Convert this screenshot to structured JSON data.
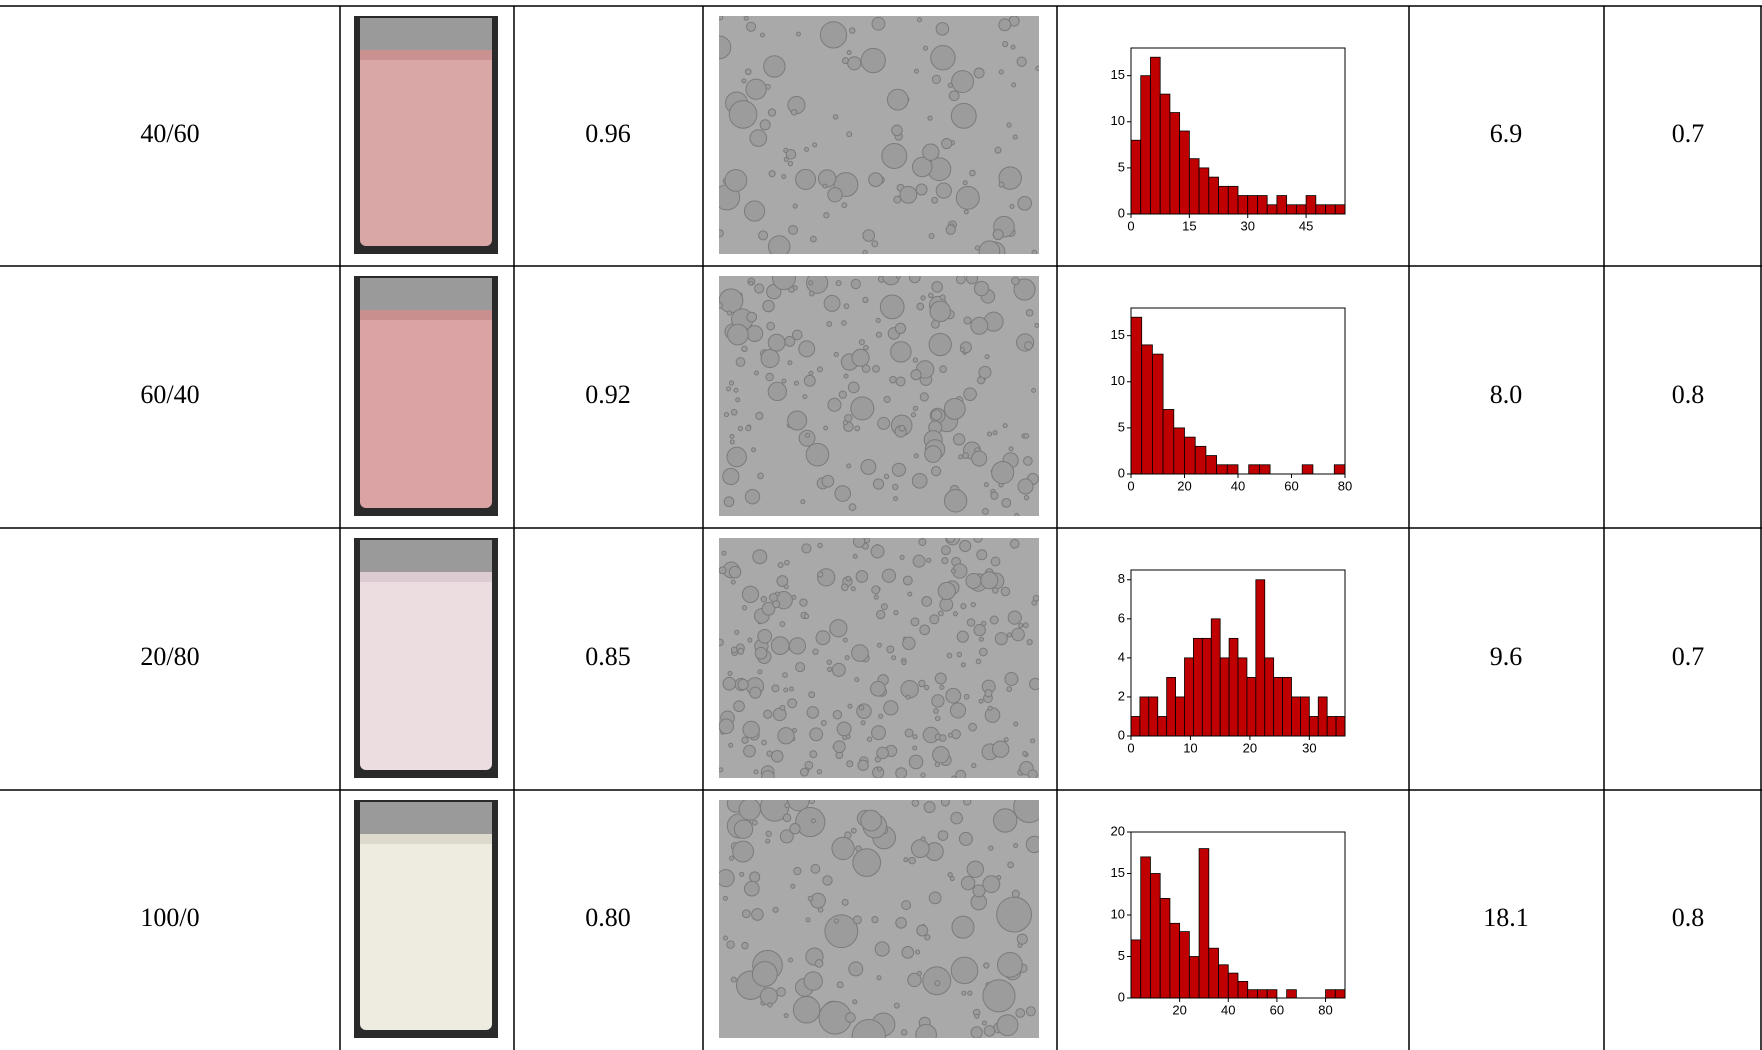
{
  "table": {
    "rows": [
      {
        "ratio": "40/60",
        "value_a": "0.96",
        "size": "6.9",
        "value_b": "0.7",
        "histogram": {
          "type": "histogram",
          "bins": [
            0,
            2.5,
            5,
            7.5,
            10,
            12.5,
            15,
            17.5,
            20,
            22.5,
            25,
            27.5,
            30,
            32.5,
            35,
            37.5,
            40,
            42.5,
            45,
            47.5,
            50,
            52.5,
            55
          ],
          "counts": [
            8,
            15,
            17,
            13,
            11,
            9,
            6,
            5,
            4,
            3,
            3,
            2,
            2,
            2,
            1,
            2,
            1,
            1,
            2,
            1,
            1,
            1
          ],
          "color": "#c00000",
          "xlim": [
            0,
            55
          ],
          "ylim": [
            0,
            18
          ],
          "xticks": [
            0,
            15,
            30,
            45
          ],
          "yticks": [
            0,
            5,
            10,
            15
          ]
        }
      },
      {
        "ratio": "60/40",
        "value_a": "0.92",
        "size": "8.0",
        "value_b": "0.8",
        "histogram": {
          "type": "histogram",
          "bins": [
            0,
            4,
            8,
            12,
            16,
            20,
            24,
            28,
            32,
            36,
            40,
            44,
            48,
            52,
            56,
            60,
            64,
            68,
            72,
            76,
            80
          ],
          "counts": [
            17,
            14,
            13,
            7,
            5,
            4,
            3,
            2,
            1,
            1,
            0,
            1,
            1,
            0,
            0,
            0,
            1,
            0,
            0,
            1
          ],
          "color": "#c00000",
          "xlim": [
            0,
            80
          ],
          "ylim": [
            0,
            18
          ],
          "xticks": [
            0,
            20,
            40,
            60,
            80
          ],
          "yticks": [
            0,
            5,
            10,
            15
          ]
        }
      },
      {
        "ratio": "20/80",
        "value_a": "0.85",
        "size": "9.6",
        "value_b": "0.7",
        "histogram": {
          "type": "histogram",
          "bins": [
            0,
            1.5,
            3,
            4.5,
            6,
            7.5,
            9,
            10.5,
            12,
            13.5,
            15,
            16.5,
            18,
            19.5,
            21,
            22.5,
            24,
            25.5,
            27,
            28.5,
            30,
            31.5,
            33,
            34.5,
            36
          ],
          "counts": [
            1,
            2,
            2,
            1,
            3,
            2,
            4,
            5,
            5,
            6,
            4,
            5,
            4,
            3,
            8,
            4,
            3,
            3,
            2,
            2,
            1,
            2,
            1,
            1
          ],
          "color": "#c00000",
          "xlim": [
            0,
            36
          ],
          "ylim": [
            0,
            8.5
          ],
          "xticks": [
            0,
            10,
            20,
            30
          ],
          "yticks": [
            0,
            2,
            4,
            6,
            8
          ]
        }
      },
      {
        "ratio": "100/0",
        "value_a": "0.80",
        "size": "18.1",
        "value_b": "0.8",
        "histogram": {
          "type": "histogram",
          "bins": [
            0,
            4,
            8,
            12,
            16,
            20,
            24,
            28,
            32,
            36,
            40,
            44,
            48,
            52,
            56,
            60,
            64,
            68,
            72,
            76,
            80,
            84,
            88
          ],
          "counts": [
            7,
            17,
            15,
            12,
            9,
            8,
            5,
            18,
            6,
            4,
            3,
            2,
            1,
            1,
            1,
            0,
            1,
            0,
            0,
            0,
            1,
            1
          ],
          "color": "#c00000",
          "xlim": [
            0,
            88
          ],
          "ylim": [
            0,
            20
          ],
          "xticks": [
            20,
            40,
            60,
            80
          ],
          "yticks": [
            0,
            5,
            10,
            15,
            20
          ]
        }
      }
    ]
  }
}
